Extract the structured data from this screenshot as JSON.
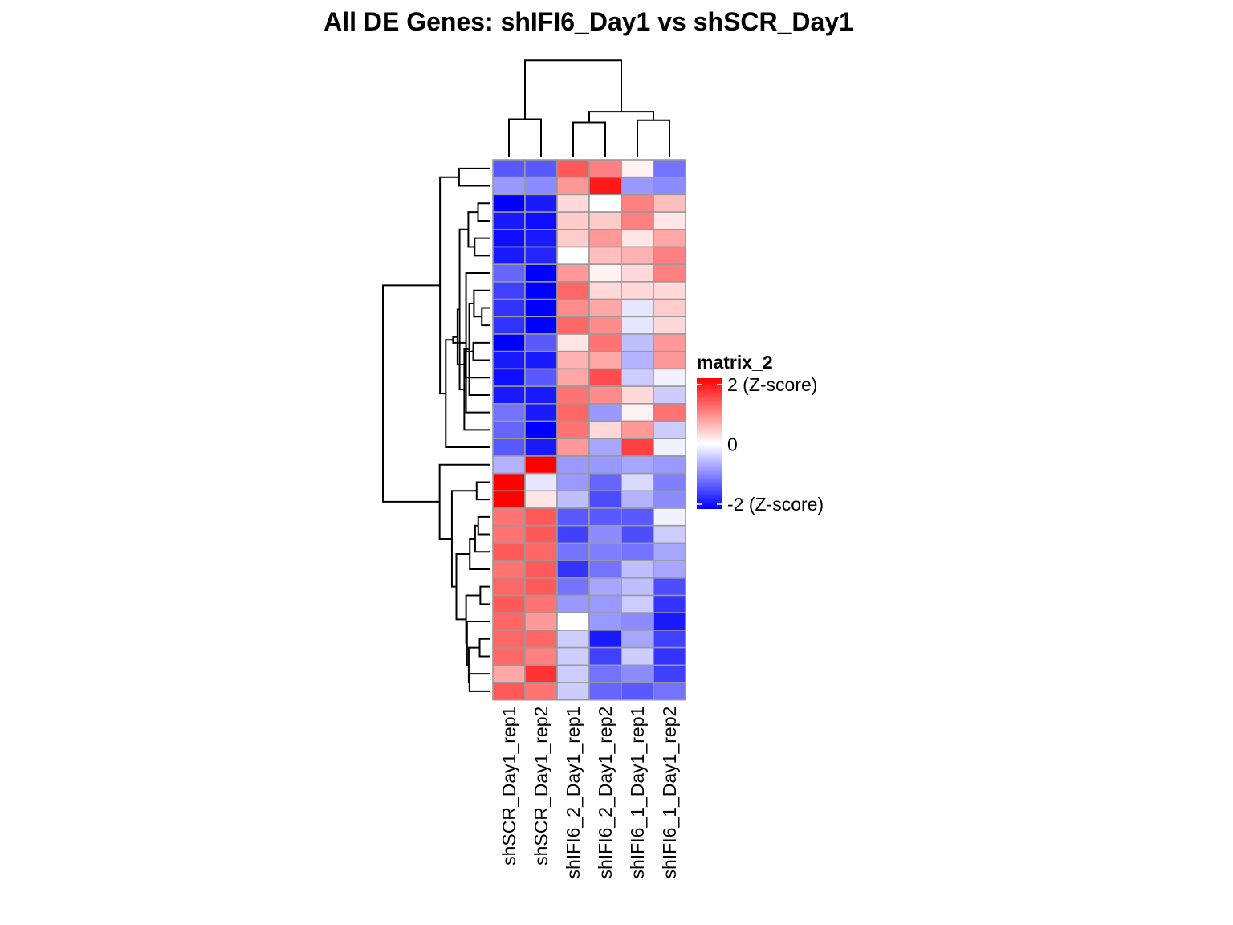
{
  "chart_data": {
    "type": "heatmap",
    "title": "All DE Genes: shIFI6_Day1  vs  shSCR_Day1",
    "columns": [
      "shSCR_Day1_rep1",
      "shSCR_Day1_rep2",
      "shIFI6_2_Day1_rep1",
      "shIFI6_2_Day1_rep2",
      "shIFI6_1_Day1_rep1",
      "shIFI6_1_Day1_rep2"
    ],
    "values": [
      [
        -1.3,
        -1.3,
        1.3,
        1.0,
        0.1,
        -1.1
      ],
      [
        -0.8,
        -0.9,
        0.8,
        1.8,
        -0.8,
        -0.9
      ],
      [
        -2.0,
        -1.8,
        0.3,
        0.0,
        1.0,
        0.5
      ],
      [
        -1.8,
        -1.9,
        0.4,
        0.4,
        1.0,
        0.2
      ],
      [
        -1.9,
        -1.8,
        0.4,
        0.8,
        0.2,
        0.7
      ],
      [
        -1.8,
        -1.7,
        0.0,
        0.5,
        0.6,
        1.0
      ],
      [
        -1.2,
        -2.3,
        0.8,
        0.1,
        0.3,
        1.0
      ],
      [
        -1.5,
        -2.0,
        1.2,
        0.3,
        0.3,
        0.3
      ],
      [
        -1.6,
        -2.0,
        0.9,
        0.7,
        -0.2,
        0.4
      ],
      [
        -1.6,
        -2.0,
        1.2,
        0.9,
        -0.2,
        0.3
      ],
      [
        -2.0,
        -1.3,
        0.2,
        1.1,
        -0.5,
        0.8
      ],
      [
        -1.8,
        -1.8,
        0.6,
        0.7,
        -0.6,
        0.8
      ],
      [
        -1.9,
        -1.3,
        0.7,
        1.4,
        -0.4,
        -0.1
      ],
      [
        -1.8,
        -1.8,
        1.1,
        0.9,
        0.3,
        -0.4
      ],
      [
        -1.1,
        -1.8,
        1.2,
        -0.8,
        0.1,
        1.1
      ],
      [
        -1.2,
        -2.2,
        1.1,
        0.3,
        0.8,
        -0.4
      ],
      [
        -1.3,
        -1.8,
        0.8,
        -0.7,
        1.5,
        -0.1
      ],
      [
        -0.6,
        2.1,
        -0.8,
        -0.8,
        -0.7,
        -0.8
      ],
      [
        2.0,
        -0.2,
        -0.8,
        -1.2,
        -0.3,
        -1.0
      ],
      [
        2.0,
        0.2,
        -0.5,
        -1.4,
        -0.6,
        -0.9
      ],
      [
        1.1,
        1.3,
        -1.3,
        -1.3,
        -1.3,
        -0.1
      ],
      [
        1.1,
        1.3,
        -1.5,
        -0.9,
        -1.4,
        -0.4
      ],
      [
        1.3,
        1.2,
        -1.1,
        -1.0,
        -1.1,
        -0.7
      ],
      [
        1.1,
        1.3,
        -1.6,
        -1.1,
        -0.5,
        -0.7
      ],
      [
        1.2,
        1.3,
        -1.1,
        -0.7,
        -0.5,
        -1.4
      ],
      [
        1.3,
        1.1,
        -0.8,
        -0.8,
        -0.4,
        -1.6
      ],
      [
        1.2,
        0.8,
        0.0,
        -0.8,
        -0.9,
        -1.8
      ],
      [
        1.2,
        1.2,
        -0.4,
        -1.8,
        -0.7,
        -1.5
      ],
      [
        1.2,
        1.0,
        -0.4,
        -1.5,
        -0.4,
        -1.6
      ],
      [
        0.7,
        1.6,
        -0.4,
        -1.1,
        -0.9,
        -1.5
      ],
      [
        1.3,
        1.1,
        -0.4,
        -1.2,
        -1.3,
        -1.1
      ]
    ],
    "color_scale": {
      "min": -2,
      "mid": 0,
      "max": 2,
      "low_color": "#0000FF",
      "mid_color": "#FFFFFF",
      "high_color": "#FF0000"
    },
    "cell_border_color": "#999999",
    "legend": {
      "title": "matrix_2",
      "ticks": [
        {
          "value": 2,
          "label": "2 (Z-score)"
        },
        {
          "value": 0,
          "label": "0"
        },
        {
          "value": -2,
          "label": "-2 (Z-score)"
        }
      ],
      "placement": "right"
    },
    "column_dendrogram": [
      [
        0,
        1
      ],
      [
        2,
        3
      ],
      [
        4,
        5
      ],
      [
        7,
        8
      ],
      [
        6,
        9
      ]
    ],
    "column_merge_heights": [
      0.35,
      0.32,
      0.34,
      0.42,
      0.9
    ],
    "row_dendrogram_shown": true
  }
}
